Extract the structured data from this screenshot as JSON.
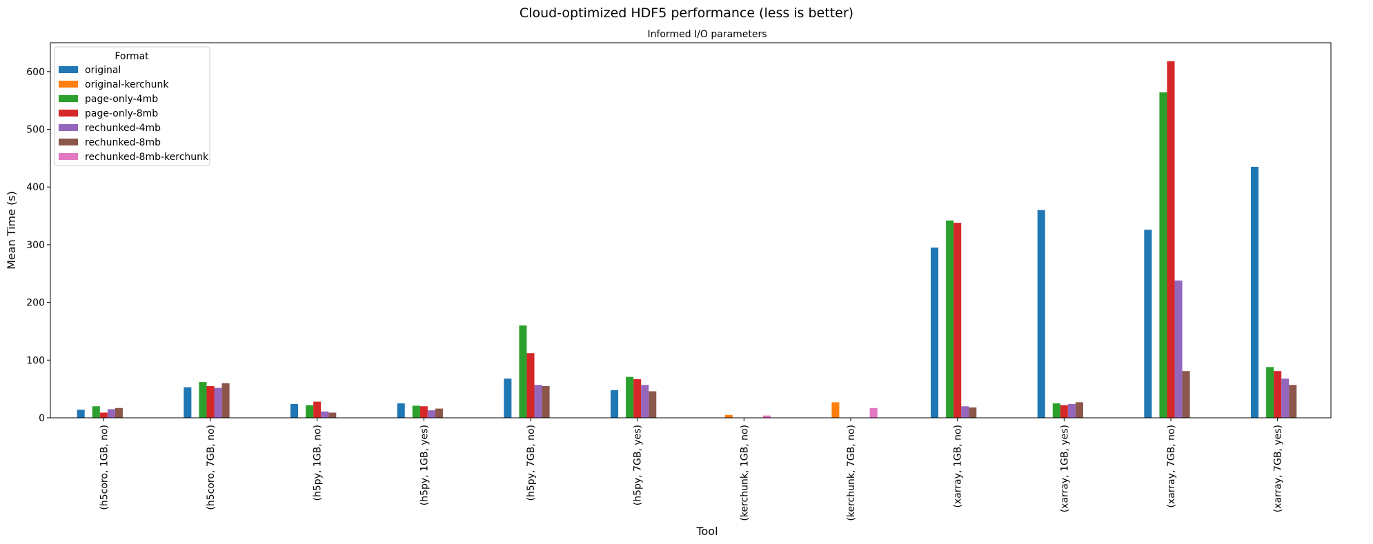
{
  "chart_data": {
    "type": "bar",
    "title": "Cloud-optimized HDF5 performance (less is better)",
    "subtitle": "Informed I/O parameters",
    "xlabel": "Tool",
    "ylabel": "Mean Time (s)",
    "ylim": [
      0,
      650
    ],
    "yticks": [
      0,
      100,
      200,
      300,
      400,
      500,
      600
    ],
    "grid": false,
    "legend": {
      "title": "Format",
      "placement": "top-left"
    },
    "categories": [
      "(h5coro, 1GB, no)",
      "(h5coro, 7GB, no)",
      "(h5py, 1GB, no)",
      "(h5py, 1GB, yes)",
      "(h5py, 7GB, no)",
      "(h5py, 7GB, yes)",
      "(kerchunk, 1GB, no)",
      "(kerchunk, 7GB, no)",
      "(xarray, 1GB, no)",
      "(xarray, 1GB, yes)",
      "(xarray, 7GB, no)",
      "(xarray, 7GB, yes)"
    ],
    "series": [
      {
        "name": "original",
        "color": "#1f77b4",
        "values": [
          14,
          53,
          24,
          25,
          68,
          48,
          null,
          null,
          295,
          360,
          326,
          435
        ]
      },
      {
        "name": "original-kerchunk",
        "color": "#ff7f0e",
        "values": [
          null,
          null,
          null,
          null,
          null,
          null,
          5,
          27,
          null,
          null,
          null,
          null
        ]
      },
      {
        "name": "page-only-4mb",
        "color": "#2ca02c",
        "values": [
          20,
          62,
          22,
          21,
          160,
          71,
          null,
          null,
          342,
          25,
          564,
          88
        ]
      },
      {
        "name": "page-only-8mb",
        "color": "#d62728",
        "values": [
          9,
          55,
          28,
          20,
          112,
          67,
          null,
          null,
          338,
          22,
          618,
          81
        ]
      },
      {
        "name": "rechunked-4mb",
        "color": "#9467bd",
        "values": [
          15,
          52,
          11,
          13,
          57,
          57,
          null,
          null,
          20,
          24,
          238,
          68
        ]
      },
      {
        "name": "rechunked-8mb",
        "color": "#8c564b",
        "values": [
          17,
          60,
          9,
          16,
          55,
          46,
          null,
          null,
          18,
          27,
          81,
          57
        ]
      },
      {
        "name": "rechunked-8mb-kerchunk",
        "color": "#e377c2",
        "values": [
          null,
          null,
          null,
          null,
          null,
          null,
          4,
          17,
          null,
          null,
          null,
          null
        ]
      }
    ]
  }
}
